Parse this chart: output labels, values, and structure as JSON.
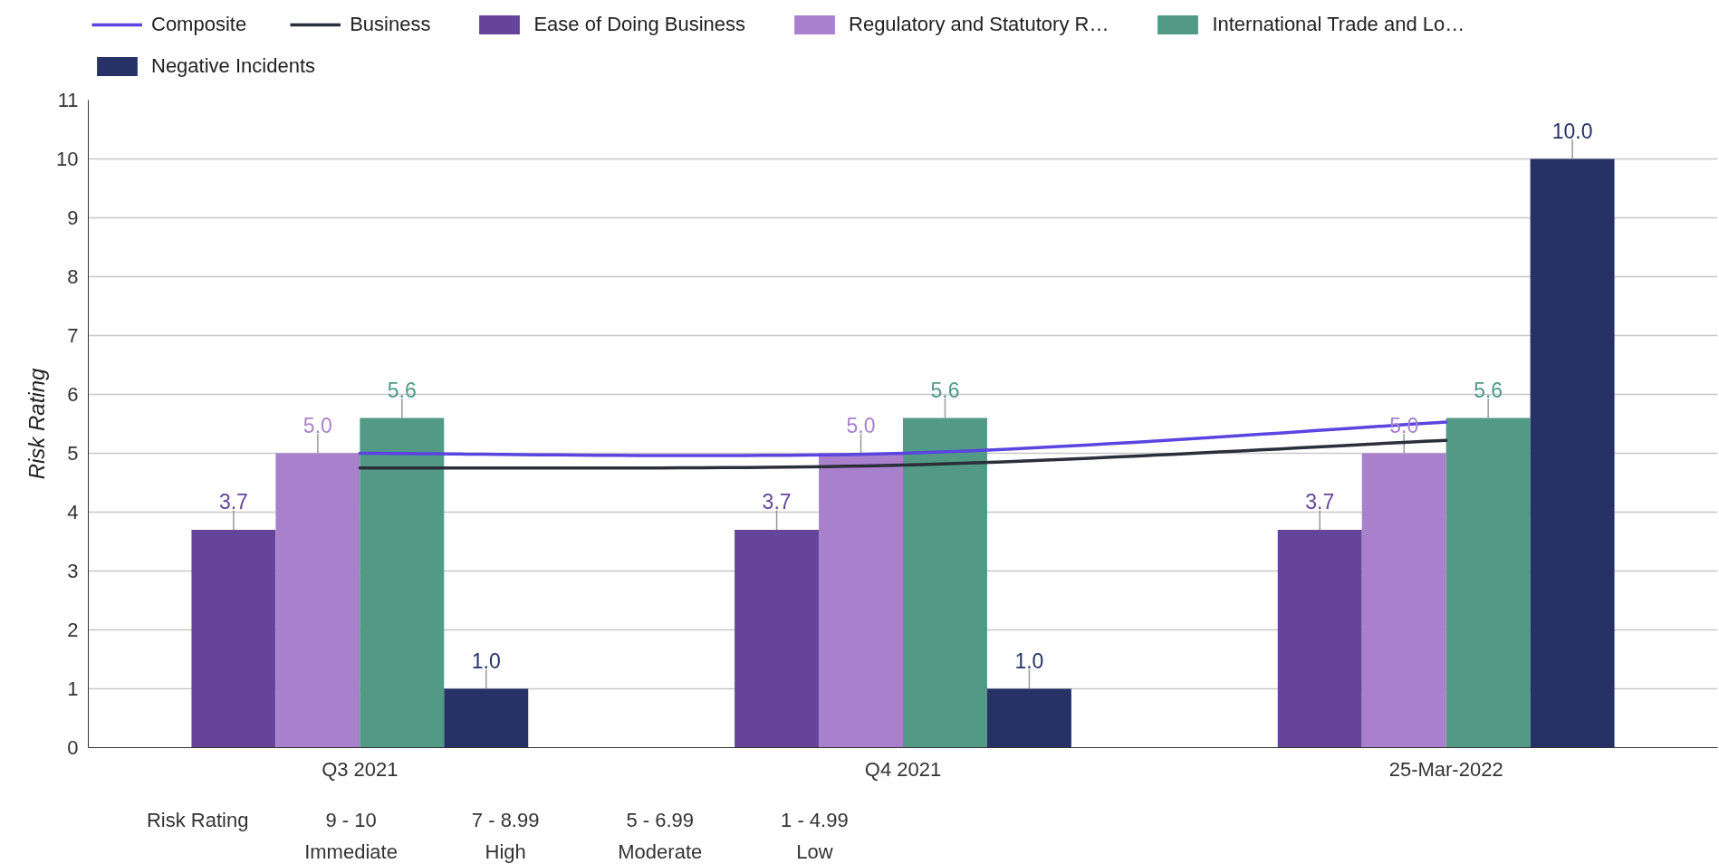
{
  "chart_data": {
    "type": "bar",
    "ylabel": "Risk Rating",
    "categories": [
      "Q3 2021",
      "Q4 2021",
      "25-Mar-2022"
    ],
    "ylim": [
      0,
      11
    ],
    "yticks": [
      0,
      1,
      2,
      3,
      4,
      5,
      6,
      7,
      8,
      9,
      10,
      11
    ],
    "grid": "y",
    "legend": "top",
    "series": [
      {
        "name": "Composite",
        "type": "line",
        "color": "#5a45e0",
        "values": [
          5.0,
          5.0,
          5.53
        ]
      },
      {
        "name": "Business",
        "type": "line",
        "color": "#2b2f3a",
        "values": [
          4.75,
          4.8,
          5.22
        ]
      },
      {
        "name": "Ease of Doing Business",
        "color": "#65449a",
        "values": [
          3.7,
          3.7,
          3.7
        ],
        "value_labels": [
          "3.7",
          "3.7",
          "3.7"
        ]
      },
      {
        "name": "Regulatory and Statutory R…",
        "color": "#a980cc",
        "values": [
          5.0,
          5.0,
          5.0
        ],
        "value_labels": [
          "5.0",
          "5.0",
          "5.0"
        ]
      },
      {
        "name": "International Trade and Lo…",
        "color": "#529a86",
        "values": [
          5.6,
          5.6,
          5.6
        ],
        "value_labels": [
          "5.6",
          "5.6",
          "5.6"
        ]
      },
      {
        "name": "Negative Incidents",
        "color": "#263266",
        "values": [
          1.0,
          1.0,
          10.0
        ],
        "value_labels": [
          "1.0",
          "1.0",
          "10.0"
        ]
      }
    ],
    "annotations": [
      "Risk Rating",
      "9 - 10",
      "Immediate",
      "7 - 8.99",
      "High",
      "5 - 6.99",
      "Moderate",
      "1 - 4.99",
      "Low"
    ]
  }
}
